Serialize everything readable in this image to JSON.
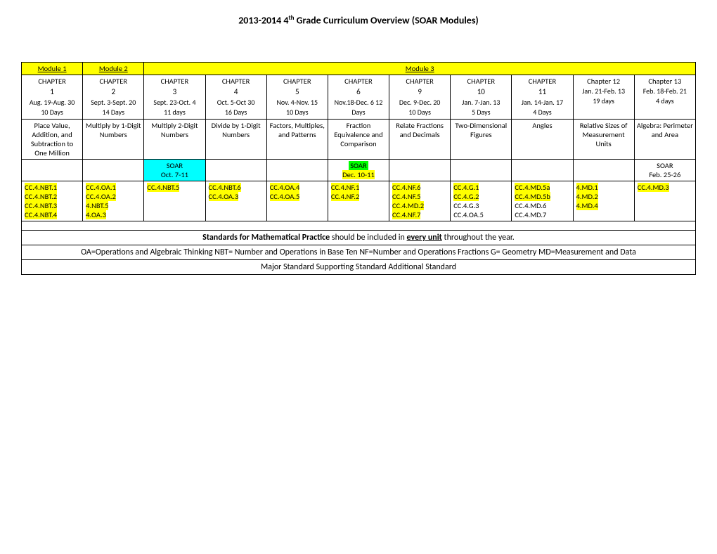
{
  "title_prefix": "2013-2014   4",
  "title_sup": "th",
  "title_suffix": " Grade Curriculum Overview (SOAR Modules)",
  "modules": {
    "m1": "Module 1",
    "m2": "Module 2",
    "m3": "Module 3"
  },
  "chapters": [
    {
      "label": "CHAPTER",
      "num": "1",
      "dates": "Aug. 19-Aug. 30",
      "days": "10 Days"
    },
    {
      "label": "CHAPTER",
      "num": "2",
      "dates": "Sept. 3-Sept. 20",
      "days": "14 Days"
    },
    {
      "label": "CHAPTER",
      "num": "3",
      "dates": "Sept. 23-Oct. 4",
      "days": "11 days"
    },
    {
      "label": "CHAPTER",
      "num": "4",
      "dates": "Oct. 5-Oct 30",
      "days": "16 Days"
    },
    {
      "label": "CHAPTER",
      "num": "5",
      "dates": "Nov. 4-Nov. 15",
      "days": "10 Days"
    },
    {
      "label": "CHAPTER",
      "num": "6",
      "dates": "Nov.18-Dec. 6 12 Days",
      "days": ""
    },
    {
      "label": "CHAPTER",
      "num": "9",
      "dates": "Dec. 9-Dec. 20",
      "days": "10 Days"
    },
    {
      "label": "CHAPTER",
      "num": "10",
      "dates": "Jan. 7-Jan. 13",
      "days": "5 Days"
    },
    {
      "label": "CHAPTER",
      "num": "11",
      "dates": "Jan. 14-Jan. 17",
      "days": "4 Days"
    },
    {
      "label": "Chapter 12",
      "num": "",
      "dates": "Jan. 21-Feb. 13",
      "days": "19 days"
    },
    {
      "label": "Chapter 13",
      "num": "",
      "dates": "Feb. 18-Feb. 21",
      "days": "4 days"
    }
  ],
  "topics": [
    "Place Value, Addition, and Subtraction to One Million",
    "Multiply by 1-Digit Numbers",
    "Multiply 2-Digit Numbers",
    "Divide by 1-Digit Numbers",
    "Factors, Multiples, and Patterns",
    "Fraction Equivalence and Comparison",
    "Relate Fractions and Decimals",
    "Two-Dimensional Figures",
    "Angles",
    "Relative Sizes of Measurement Units",
    "Algebra: Perimeter and Area"
  ],
  "soar": {
    "s1_label": "SOAR",
    "s1_dates": "Oct. 7-11",
    "s2_label": "SOAR",
    "s2_dates": "Dec. 10-11",
    "s3_label": "SOAR",
    "s3_dates": "Feb. 25-26"
  },
  "standards": [
    [
      {
        "t": "CC.4.NBT.1",
        "c": "y"
      },
      {
        "t": "CC.4.NBT.2",
        "c": "y"
      },
      {
        "t": "CC.4.NBT.3",
        "c": "y"
      },
      {
        "t": "CC.4.NBT.4",
        "c": "y"
      }
    ],
    [
      {
        "t": "CC.4.OA.1",
        "c": "y"
      },
      {
        "t": "CC.4.OA.2",
        "c": "y"
      },
      {
        "t": "4.NBT.5",
        "c": "y"
      },
      {
        "t": "4.OA.3",
        "c": "y"
      }
    ],
    [
      {
        "t": "CC.4.NBT.5",
        "c": "y"
      }
    ],
    [
      {
        "t": "CC.4.NBT.6",
        "c": "y"
      },
      {
        "t": "CC.4.OA.3",
        "c": "y"
      }
    ],
    [
      {
        "t": "CC.4.OA.4",
        "c": "y"
      },
      {
        "t": "CC.4.OA.5",
        "c": "y"
      }
    ],
    [
      {
        "t": "CC.4.NF.1",
        "c": "y"
      },
      {
        "t": "CC.4.NF.2",
        "c": "y"
      }
    ],
    [
      {
        "t": "CC.4.NF.6",
        "c": "y"
      },
      {
        "t": "CC.4.NF.5",
        "c": "y"
      },
      {
        "t": "CC.4.MD.2",
        "c": "y"
      },
      {
        "t": "CC.4.NF.7",
        "c": "y"
      }
    ],
    [
      {
        "t": "CC.4.G.1",
        "c": "y"
      },
      {
        "t": "CC.4.G.2",
        "c": "y"
      },
      {
        "t": "CC.4.G.3",
        "c": ""
      },
      {
        "t": "CC.4.OA.5",
        "c": ""
      }
    ],
    [
      {
        "t": "CC.4.MD.5a",
        "c": "y"
      },
      {
        "t": "CC.4.MD.5b",
        "c": "y"
      },
      {
        "t": "CC.4.MD.6",
        "c": ""
      },
      {
        "t": "CC.4.MD.7",
        "c": ""
      }
    ],
    [
      {
        "t": "4.MD.1",
        "c": "y"
      },
      {
        "t": "4.MD.2",
        "c": "y"
      },
      {
        "t": "4.MD.4",
        "c": "y"
      }
    ],
    [
      {
        "t": "CC.4.MD.3",
        "c": "y"
      }
    ]
  ],
  "notes": {
    "line1_a": "Standards for Mathematical Practice",
    "line1_b": " should be included in ",
    "line1_c": "every unit",
    "line1_d": " throughout the year.",
    "line2": "OA=Operations and Algebraic Thinking NBT= Number and Operations in Base Ten NF=Number and Operations Fractions G= Geometry MD=Measurement and Data",
    "line3": "Major Standard  Supporting Standard   Additional Standard"
  }
}
